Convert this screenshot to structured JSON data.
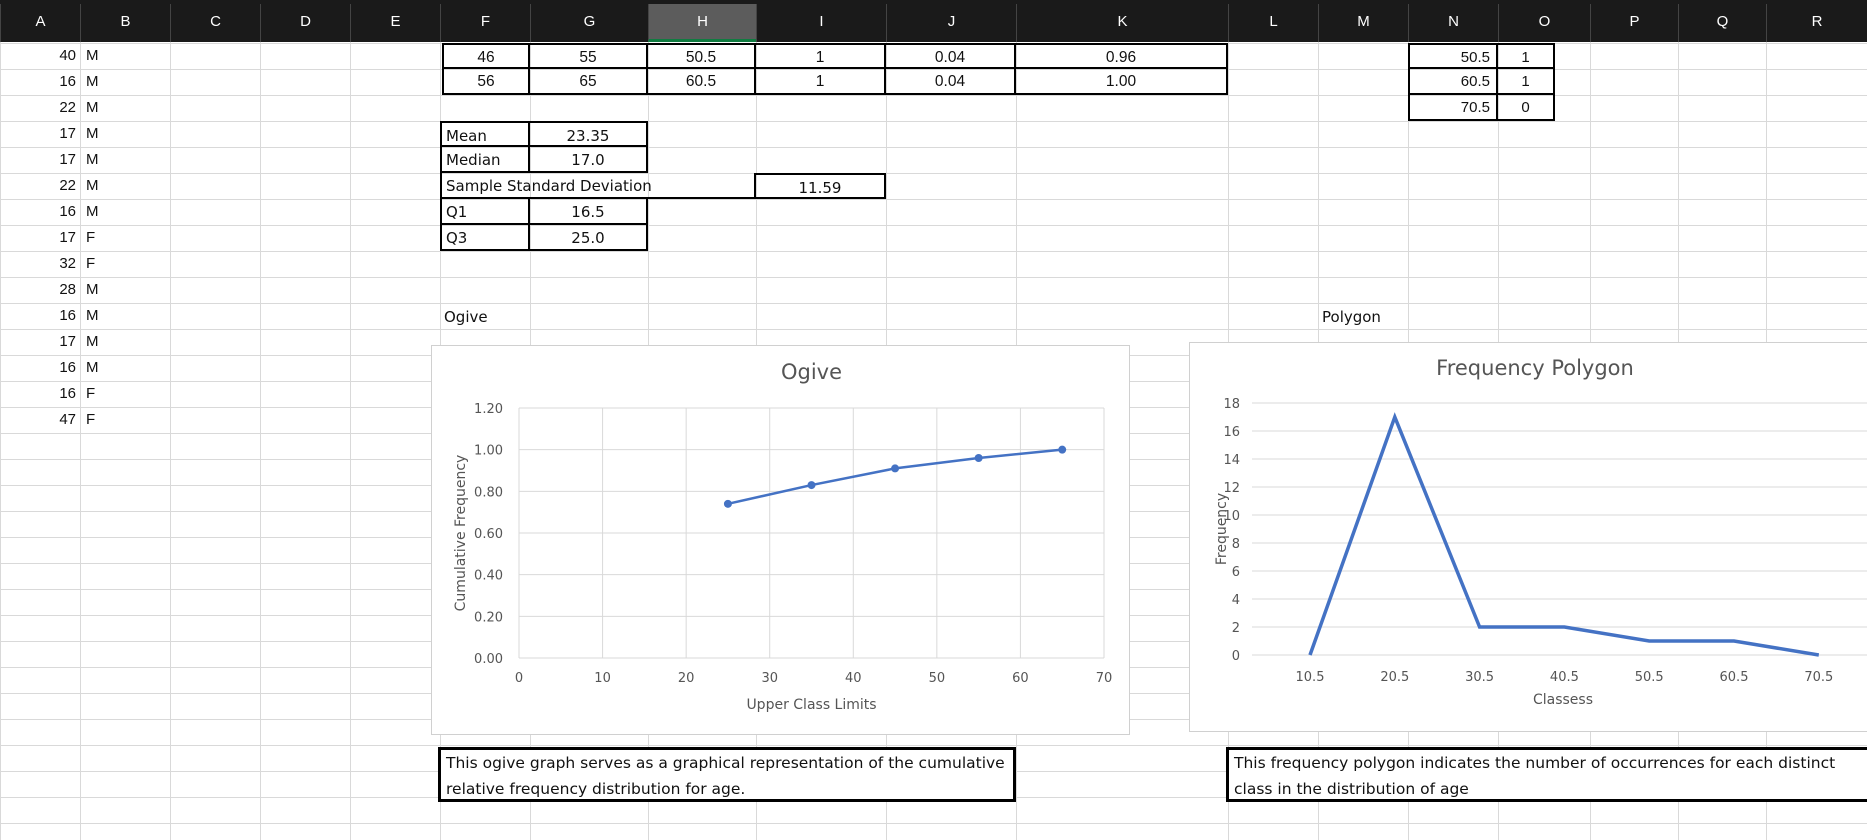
{
  "columns": [
    "A",
    "B",
    "C",
    "D",
    "E",
    "F",
    "G",
    "H",
    "I",
    "J",
    "K",
    "L",
    "M",
    "N",
    "O",
    "P",
    "Q",
    "R"
  ],
  "selected_column": "H",
  "col_a": [
    "40",
    "16",
    "22",
    "17",
    "17",
    "22",
    "16",
    "17",
    "32",
    "28",
    "16",
    "17",
    "16",
    "16",
    "47"
  ],
  "col_b": [
    "M",
    "M",
    "M",
    "M",
    "M",
    "M",
    "M",
    "F",
    "F",
    "M",
    "M",
    "M",
    "M",
    "F",
    "F"
  ],
  "freq_rows": [
    [
      "46",
      "55",
      "50.5",
      "1",
      "0.04",
      "0.96"
    ],
    [
      "56",
      "65",
      "60.5",
      "1",
      "0.04",
      "1.00"
    ]
  ],
  "polygon_table": [
    [
      "50.5",
      "1"
    ],
    [
      "60.5",
      "1"
    ],
    [
      "70.5",
      "0"
    ]
  ],
  "stats": {
    "mean_label": "Mean",
    "mean": "23.35",
    "median_label": "Median",
    "median": "17.0",
    "sd_label": "Sample Standard Deviation",
    "sd": "11.59",
    "q1_label": "Q1",
    "q1": "16.5",
    "q3_label": "Q3",
    "q3": "25.0"
  },
  "labels": {
    "ogive": "Ogive",
    "polygon": "Polygon"
  },
  "notes": {
    "ogive": "This ogive graph serves as a graphical representation of the cumulative relative frequency distribution for age.",
    "polygon": "This frequency polygon indicates the number of occurrences for each distinct class in the distribution of age"
  },
  "chart_data": [
    {
      "type": "line",
      "title": "Ogive",
      "xlabel": "Upper Class Limits",
      "ylabel": "Cumulative Frequency",
      "xlim": [
        0,
        70
      ],
      "ylim": [
        0,
        1.2
      ],
      "x_ticks": [
        "0",
        "10",
        "20",
        "30",
        "40",
        "50",
        "60",
        "70"
      ],
      "y_ticks": [
        "0.00",
        "0.20",
        "0.40",
        "0.60",
        "0.80",
        "1.00",
        "1.20"
      ],
      "x": [
        25,
        35,
        45,
        55,
        65
      ],
      "y": [
        0.74,
        0.83,
        0.91,
        0.96,
        1.0
      ],
      "markers": true,
      "grid": true,
      "color": "#4472C4"
    },
    {
      "type": "line",
      "title": "Frequency Polygon",
      "xlabel": "Classess",
      "ylabel": "Frequency",
      "ylim": [
        0,
        18
      ],
      "categories": [
        "10.5",
        "20.5",
        "30.5",
        "40.5",
        "50.5",
        "60.5",
        "70.5"
      ],
      "y_ticks": [
        "0",
        "2",
        "4",
        "6",
        "8",
        "10",
        "12",
        "14",
        "16",
        "18"
      ],
      "values": [
        0,
        17,
        2,
        2,
        1,
        1,
        0
      ],
      "markers": false,
      "grid": true,
      "color": "#4472C4"
    }
  ]
}
